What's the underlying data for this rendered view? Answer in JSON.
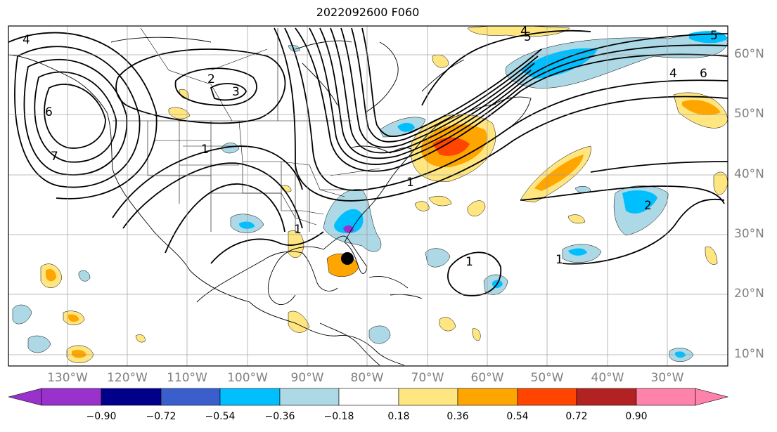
{
  "title": "2022092600 F060",
  "latitude_labels": [
    "60°N",
    "50°N",
    "40°N",
    "30°N",
    "20°N",
    "10°N"
  ],
  "longitude_labels": [
    "130°W",
    "120°W",
    "110°W",
    "100°W",
    "90°W",
    "80°W",
    "70°W",
    "60°W",
    "50°W",
    "40°W",
    "30°W"
  ],
  "contour_labels": [
    "4",
    "2",
    "3",
    "6",
    "7",
    "1",
    "5",
    "4",
    "6",
    "1",
    "1",
    "2",
    "1",
    "1",
    "4",
    "5"
  ],
  "colorbar": {
    "tick_labels": [
      "−0.90",
      "−0.72",
      "−0.54",
      "−0.36",
      "−0.18",
      "0.18",
      "0.36",
      "0.54",
      "0.72",
      "0.90"
    ],
    "colors": [
      "#9932cc",
      "#00008b",
      "#3a5fcd",
      "#00bfff",
      "#add8e6",
      "#ffffff",
      "#ffe680",
      "#ffa500",
      "#ff4500",
      "#b22222",
      "#ff82ab"
    ]
  },
  "marker": {
    "name": "storm-position",
    "lon": -84,
    "lat": 26
  }
}
